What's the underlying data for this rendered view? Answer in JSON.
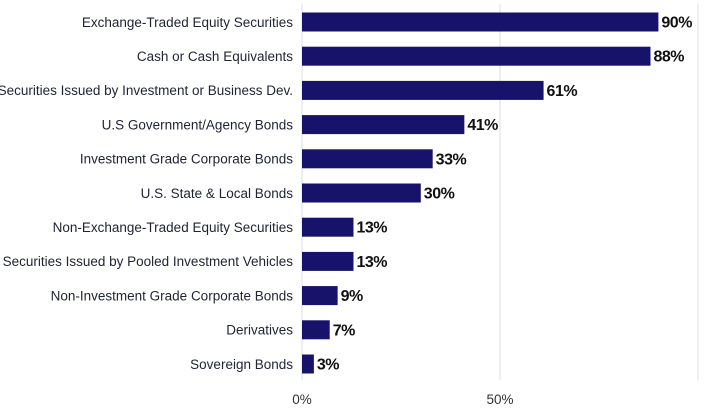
{
  "chart_data": {
    "type": "bar",
    "orientation": "horizontal",
    "categories": [
      "Exchange-Traded Equity Securities",
      "Cash or Cash Equivalents",
      "Securities Issued by Investment or Business Dev.",
      "U.S Government/Agency Bonds",
      "Investment Grade Corporate Bonds",
      "U.S. State & Local Bonds",
      "Non-Exchange-Traded Equity Securities",
      "Securities Issued by Pooled Investment Vehicles",
      "Non-Investment Grade Corporate Bonds",
      "Derivatives",
      "Sovereign Bonds"
    ],
    "values": [
      90,
      88,
      61,
      41,
      33,
      30,
      13,
      13,
      9,
      7,
      3
    ],
    "value_labels": [
      "90%",
      "88%",
      "61%",
      "41%",
      "33%",
      "30%",
      "13%",
      "13%",
      "9%",
      "7%",
      "3%"
    ],
    "xlim": [
      0,
      100
    ],
    "x_ticks": [
      0,
      50,
      100
    ],
    "x_tick_labels": [
      "0%",
      "50%",
      ""
    ],
    "grid": "vertical",
    "bar_color": "#17136b",
    "grid_color": "#d9dce3",
    "title": "",
    "xlabel": "",
    "ylabel": ""
  }
}
